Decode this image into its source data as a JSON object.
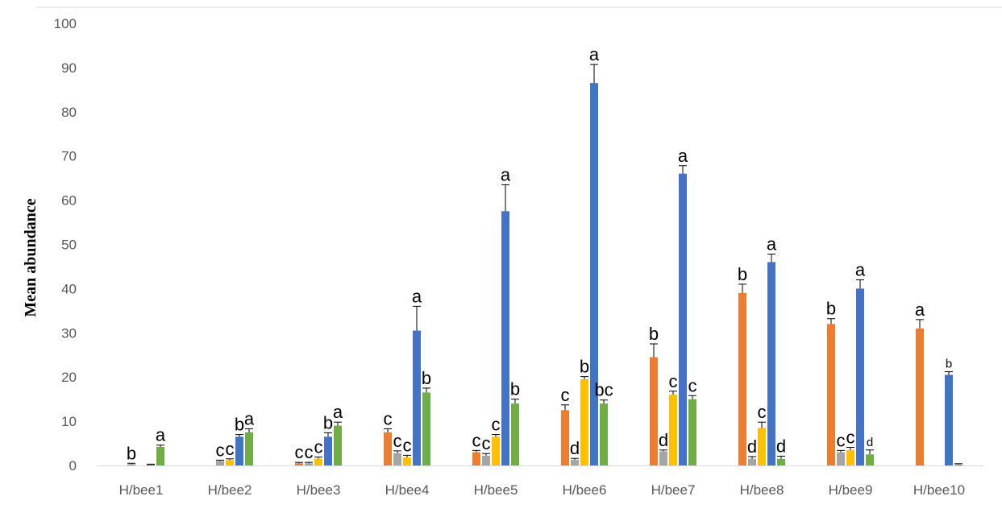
{
  "chart_data": {
    "type": "bar",
    "title": "",
    "xlabel": "",
    "ylabel": "Mean abundance",
    "ylim": [
      0,
      100
    ],
    "yticks": [
      "0",
      "10",
      "20",
      "30",
      "40",
      "50",
      "60",
      "70",
      "80",
      "90",
      "100"
    ],
    "grid": false,
    "legend": "none",
    "categories": [
      "H/bee1",
      "H/bee2",
      "H/bee3",
      "H/bee4",
      "H/bee5",
      "H/bee6",
      "H/bee7",
      "H/bee8",
      "H/bee9",
      "H/bee10"
    ],
    "series": [
      {
        "color": "#ED7D31",
        "values": [
          0,
          0,
          0.5,
          7.5,
          3,
          12.5,
          24.5,
          39,
          32,
          31
        ],
        "errors": [
          0,
          0,
          0.2,
          0.8,
          0.4,
          1.2,
          3,
          2,
          1.2,
          2
        ],
        "labels": [
          "",
          "",
          "c",
          "c",
          "c",
          "c",
          "b",
          "b",
          "b",
          "a"
        ]
      },
      {
        "color": "#A5A5A5",
        "values": [
          0.3,
          1,
          0.5,
          2.8,
          2.2,
          1.3,
          3.2,
          1.5,
          3,
          0
        ],
        "errors": [
          0.2,
          0.2,
          0.2,
          0.5,
          0.5,
          0.3,
          0.3,
          0.5,
          0.4,
          0
        ],
        "labels": [
          "b",
          "c",
          "c",
          "c",
          "c",
          "d",
          "d",
          "d",
          "c",
          ""
        ]
      },
      {
        "color": "#FFC000",
        "values": [
          0,
          1.2,
          1.5,
          1.8,
          6.5,
          19.5,
          16,
          8.5,
          3.5,
          0
        ],
        "errors": [
          0,
          0.3,
          0.4,
          0.5,
          0.5,
          0.6,
          0.8,
          1.3,
          0.6,
          0
        ],
        "labels": [
          "",
          "c",
          "c",
          "c",
          "c",
          "b",
          "c",
          "c",
          "c",
          ""
        ]
      },
      {
        "color": "#4472C4",
        "values": [
          0.2,
          6.5,
          6.5,
          30.5,
          57.5,
          86.5,
          66,
          46,
          40,
          20.5
        ],
        "errors": [
          0.1,
          0.5,
          0.9,
          5.5,
          6,
          4.2,
          1.8,
          1.8,
          2,
          0.7
        ],
        "labels": [
          "",
          "b",
          "b",
          "a",
          "a",
          "a",
          "a",
          "a",
          "a",
          "b"
        ]
      },
      {
        "color": "#70AD47",
        "values": [
          4.2,
          7.5,
          9,
          16.5,
          14,
          14,
          15,
          1.5,
          2.5,
          0.2
        ],
        "errors": [
          0.4,
          0.8,
          0.8,
          1,
          1,
          0.8,
          0.8,
          0.6,
          1,
          0.2
        ],
        "labels": [
          "a",
          "a",
          "a",
          "b",
          "b",
          "bc",
          "c",
          "d",
          "d",
          ""
        ]
      }
    ]
  }
}
